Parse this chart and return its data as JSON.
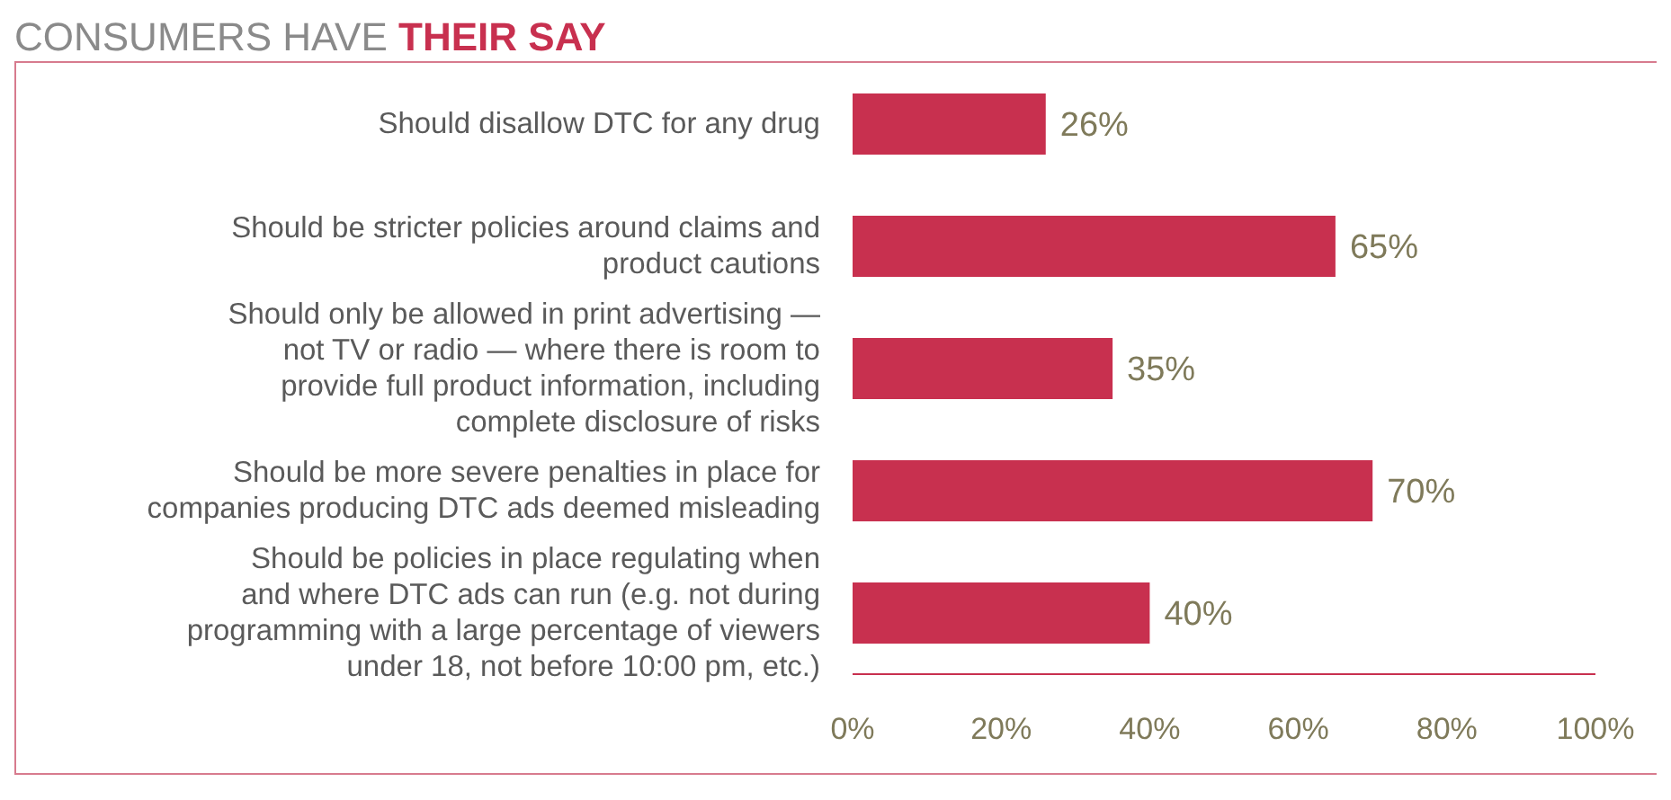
{
  "chart_data": {
    "type": "bar",
    "orientation": "horizontal",
    "title": "CONSUMERS HAVE THEIR SAY",
    "categories": [
      "Should disallow DTC for any drug",
      "Should be stricter policies around claims and product cautions",
      "Should only be allowed in print advertising — not TV or radio — where there is room to provide full product information, including complete disclosure of risks",
      "Should be more severe penalties in place for companies producing DTC ads deemed misleading",
      "Should be policies in place regulating when and where DTC ads can run (e.g. not during programming with a large percentage of viewers under 18, not before 10:00 pm, etc.)"
    ],
    "values": [
      26,
      65,
      35,
      70,
      40
    ],
    "value_labels": [
      "26%",
      "65%",
      "35%",
      "70%",
      "40%"
    ],
    "color": "#c8304f",
    "xlim": [
      0,
      100
    ],
    "xticks": [
      {
        "value": 0,
        "label": "0%"
      },
      {
        "value": 20,
        "label": "20%"
      },
      {
        "value": 40,
        "label": "40%"
      },
      {
        "value": 60,
        "label": "60%"
      },
      {
        "value": 80,
        "label": "80%"
      },
      {
        "value": 100,
        "label": "100%"
      }
    ],
    "grid": false,
    "legend": false
  }
}
